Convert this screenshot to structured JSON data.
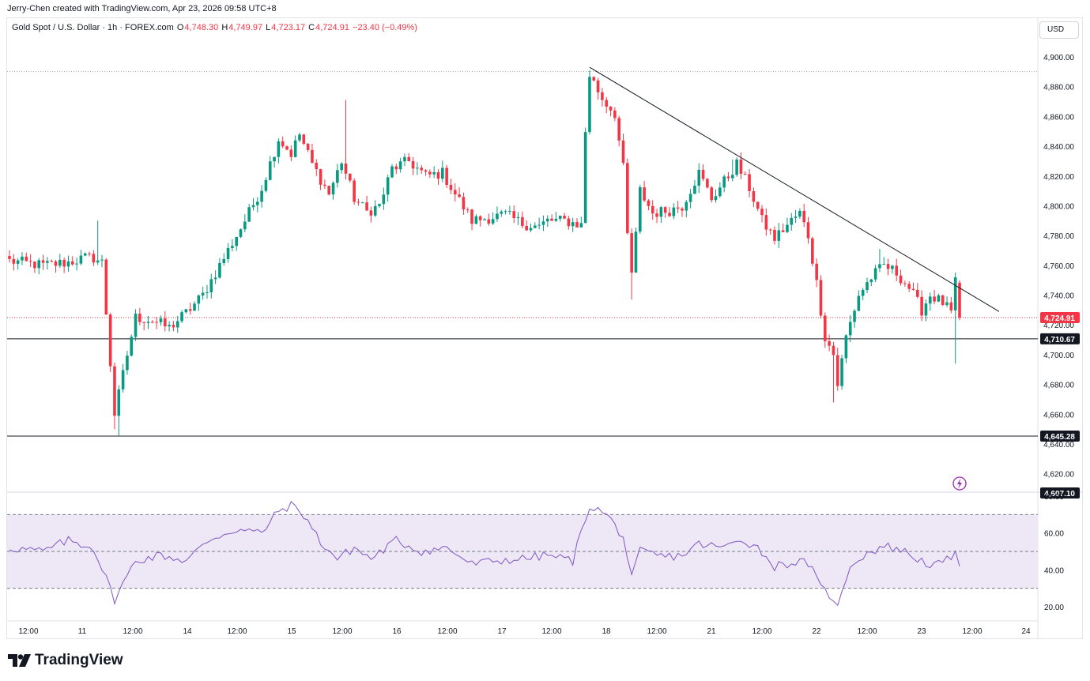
{
  "attribution": "Jerry-Chen created with TradingView.com, Apr 23, 2026 09:58 UTC+8",
  "legend": {
    "symbol": "Gold Spot / U.S. Dollar · 1h · FOREX.com",
    "o_label": "O",
    "o": "4,748.30",
    "h_label": "H",
    "h": "4,749.97",
    "l_label": "L",
    "l": "4,723.17",
    "c_label": "C",
    "c": "4,724.91",
    "change": "−23.40 (−0.49%)"
  },
  "currency_button": "USD",
  "brand": "TradingView",
  "colors": {
    "up": "#089981",
    "down": "#f23645",
    "rsi": "#7e57c2",
    "rsi_band": "#ede7f6",
    "grid": "#e0e3eb"
  },
  "chart_data": [
    {
      "type": "candlestick",
      "interval": "1h",
      "ylim": [
        4600,
        4912
      ],
      "yticks": [
        "4,900.00",
        "4,880.00",
        "4,860.00",
        "4,840.00",
        "4,820.00",
        "4,800.00",
        "4,780.00",
        "4,760.00",
        "4,740.00",
        "4,720.00",
        "4,700.00",
        "4,680.00",
        "4,660.00",
        "4,640.00",
        "4,620.00"
      ],
      "xticks": [
        "12:00",
        "11",
        "12:00",
        "14",
        "12:00",
        "15",
        "12:00",
        "16",
        "12:00",
        "17",
        "12:00",
        "18",
        "12:00",
        "21",
        "12:00",
        "22",
        "12:00",
        "23",
        "12:00",
        "24"
      ],
      "price_labels": [
        {
          "value": 4724.91,
          "text": "4,724.91",
          "color": "#f23645"
        },
        {
          "value": 4710.67,
          "text": "4,710.67",
          "color": "#131722"
        },
        {
          "value": 4645.28,
          "text": "4,645.28",
          "color": "#131722"
        },
        {
          "value": 4607.1,
          "text": "4,607.10",
          "color": "#131722"
        }
      ],
      "horizontal_lines": [
        {
          "value": 4890.2,
          "style": "dotted",
          "color": "#b2b5be"
        },
        {
          "value": 4724.91,
          "style": "dotted",
          "color": "#f23645"
        },
        {
          "value": 4710.67,
          "style": "solid",
          "color": "#131722"
        },
        {
          "value": 4645.28,
          "style": "solid",
          "color": "#131722"
        }
      ],
      "trendline": {
        "from": {
          "bar": 0,
          "price": 4893
        },
        "to": {
          "bar": 0,
          "price": 4729
        }
      },
      "anchors": [
        {
          "bar": 0,
          "price": 4763
        },
        {
          "bar": 8,
          "price": 4760
        },
        {
          "bar": 14,
          "price": 4762
        },
        {
          "bar": 18,
          "price": 4765
        },
        {
          "bar": 20,
          "price": 4765
        },
        {
          "bar": 22,
          "price": 4762
        },
        {
          "bar": 25,
          "price": 4660
        },
        {
          "bar": 28,
          "price": 4700
        },
        {
          "bar": 30,
          "price": 4725
        },
        {
          "bar": 34,
          "price": 4723
        },
        {
          "bar": 38,
          "price": 4718
        },
        {
          "bar": 42,
          "price": 4728
        },
        {
          "bar": 46,
          "price": 4740
        },
        {
          "bar": 52,
          "price": 4770
        },
        {
          "bar": 56,
          "price": 4790
        },
        {
          "bar": 60,
          "price": 4812
        },
        {
          "bar": 64,
          "price": 4845
        },
        {
          "bar": 67,
          "price": 4835
        },
        {
          "bar": 69,
          "price": 4848
        },
        {
          "bar": 72,
          "price": 4828
        },
        {
          "bar": 76,
          "price": 4808
        },
        {
          "bar": 79,
          "price": 4830
        },
        {
          "bar": 82,
          "price": 4805
        },
        {
          "bar": 85,
          "price": 4796
        },
        {
          "bar": 88,
          "price": 4800
        },
        {
          "bar": 91,
          "price": 4825
        },
        {
          "bar": 95,
          "price": 4830
        },
        {
          "bar": 99,
          "price": 4820
        },
        {
          "bar": 103,
          "price": 4822
        },
        {
          "bar": 106,
          "price": 4808
        },
        {
          "bar": 110,
          "price": 4790
        },
        {
          "bar": 114,
          "price": 4792
        },
        {
          "bar": 118,
          "price": 4794
        },
        {
          "bar": 122,
          "price": 4788
        },
        {
          "bar": 126,
          "price": 4786
        },
        {
          "bar": 128,
          "price": 4790
        },
        {
          "bar": 132,
          "price": 4790
        },
        {
          "bar": 136,
          "price": 4787
        },
        {
          "bar": 137,
          "price": 4850
        },
        {
          "bar": 138,
          "price": 4888
        },
        {
          "bar": 141,
          "price": 4872
        },
        {
          "bar": 144,
          "price": 4862
        },
        {
          "bar": 146,
          "price": 4825
        },
        {
          "bar": 147,
          "price": 4780
        },
        {
          "bar": 148,
          "price": 4755
        },
        {
          "bar": 149,
          "price": 4780
        },
        {
          "bar": 150,
          "price": 4810
        },
        {
          "bar": 153,
          "price": 4795
        },
        {
          "bar": 157,
          "price": 4797
        },
        {
          "bar": 160,
          "price": 4800
        },
        {
          "bar": 164,
          "price": 4822
        },
        {
          "bar": 167,
          "price": 4805
        },
        {
          "bar": 171,
          "price": 4820
        },
        {
          "bar": 173,
          "price": 4828
        },
        {
          "bar": 176,
          "price": 4812
        },
        {
          "bar": 179,
          "price": 4790
        },
        {
          "bar": 182,
          "price": 4778
        },
        {
          "bar": 186,
          "price": 4790
        },
        {
          "bar": 188,
          "price": 4795
        },
        {
          "bar": 190,
          "price": 4780
        },
        {
          "bar": 192,
          "price": 4748
        },
        {
          "bar": 194,
          "price": 4712
        },
        {
          "bar": 196,
          "price": 4700
        },
        {
          "bar": 197,
          "price": 4680
        },
        {
          "bar": 199,
          "price": 4712
        },
        {
          "bar": 202,
          "price": 4740
        },
        {
          "bar": 205,
          "price": 4752
        },
        {
          "bar": 208,
          "price": 4760
        },
        {
          "bar": 211,
          "price": 4755
        },
        {
          "bar": 214,
          "price": 4745
        },
        {
          "bar": 217,
          "price": 4730
        },
        {
          "bar": 219,
          "price": 4740
        },
        {
          "bar": 222,
          "price": 4735
        },
        {
          "bar": 224,
          "price": 4728
        },
        {
          "bar": 225,
          "price": 4748
        },
        {
          "bar": 226,
          "price": 4725
        }
      ],
      "rsi": {
        "ylim": [
          14,
          82
        ],
        "yticks": [
          "80.00",
          "60.00",
          "40.00",
          "20.00"
        ],
        "band": [
          30,
          70
        ],
        "midline": 50,
        "anchors": [
          {
            "bar": 0,
            "v": 52
          },
          {
            "bar": 8,
            "v": 50
          },
          {
            "bar": 14,
            "v": 56
          },
          {
            "bar": 20,
            "v": 52
          },
          {
            "bar": 25,
            "v": 24
          },
          {
            "bar": 30,
            "v": 45
          },
          {
            "bar": 36,
            "v": 48
          },
          {
            "bar": 42,
            "v": 45
          },
          {
            "bar": 48,
            "v": 57
          },
          {
            "bar": 54,
            "v": 62
          },
          {
            "bar": 60,
            "v": 60
          },
          {
            "bar": 64,
            "v": 72
          },
          {
            "bar": 67,
            "v": 75
          },
          {
            "bar": 70,
            "v": 70
          },
          {
            "bar": 74,
            "v": 55
          },
          {
            "bar": 78,
            "v": 46
          },
          {
            "bar": 82,
            "v": 52
          },
          {
            "bar": 86,
            "v": 46
          },
          {
            "bar": 92,
            "v": 56
          },
          {
            "bar": 98,
            "v": 50
          },
          {
            "bar": 104,
            "v": 52
          },
          {
            "bar": 110,
            "v": 43
          },
          {
            "bar": 116,
            "v": 45
          },
          {
            "bar": 122,
            "v": 46
          },
          {
            "bar": 128,
            "v": 48
          },
          {
            "bar": 134,
            "v": 45
          },
          {
            "bar": 137,
            "v": 68
          },
          {
            "bar": 138,
            "v": 75
          },
          {
            "bar": 142,
            "v": 70
          },
          {
            "bar": 146,
            "v": 58
          },
          {
            "bar": 148,
            "v": 35
          },
          {
            "bar": 150,
            "v": 50
          },
          {
            "bar": 156,
            "v": 47
          },
          {
            "bar": 160,
            "v": 48
          },
          {
            "bar": 164,
            "v": 54
          },
          {
            "bar": 170,
            "v": 52
          },
          {
            "bar": 174,
            "v": 57
          },
          {
            "bar": 178,
            "v": 52
          },
          {
            "bar": 182,
            "v": 42
          },
          {
            "bar": 186,
            "v": 44
          },
          {
            "bar": 190,
            "v": 44
          },
          {
            "bar": 193,
            "v": 30
          },
          {
            "bar": 196,
            "v": 25
          },
          {
            "bar": 197,
            "v": 19
          },
          {
            "bar": 200,
            "v": 43
          },
          {
            "bar": 204,
            "v": 49
          },
          {
            "bar": 208,
            "v": 53
          },
          {
            "bar": 212,
            "v": 51
          },
          {
            "bar": 216,
            "v": 46
          },
          {
            "bar": 220,
            "v": 42
          },
          {
            "bar": 224,
            "v": 46
          },
          {
            "bar": 225,
            "v": 52
          },
          {
            "bar": 226,
            "v": 42
          }
        ]
      }
    }
  ]
}
